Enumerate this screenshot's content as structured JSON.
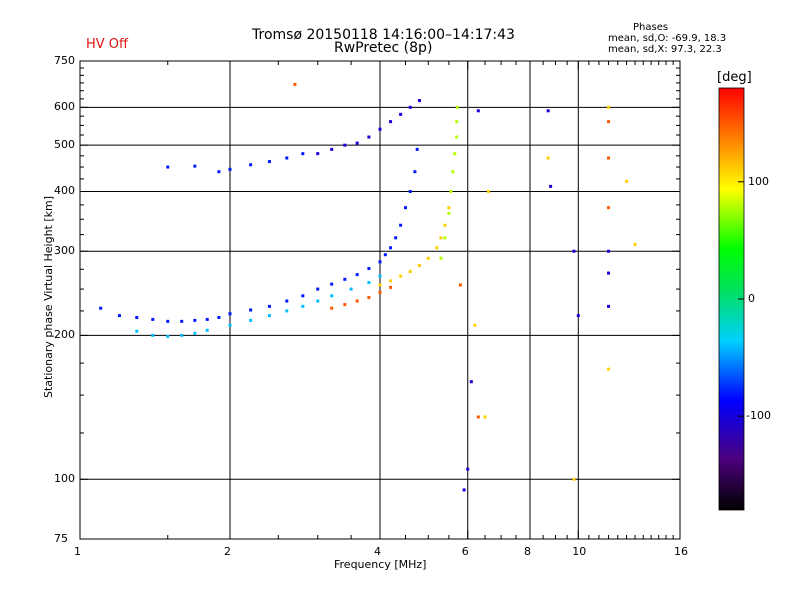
{
  "header": {
    "title_line1": "Tromsø 20150118  14:16:00–14:17:43",
    "title_line2": "RwPretec (8p)",
    "status": "HV Off",
    "phases_heading": "Phases",
    "phases_o": "mean, sd,O:  -69.9, 18.3",
    "phases_x": "mean, sd,X:  97.3, 22.3"
  },
  "chart_data": {
    "type": "scatter",
    "xlabel": "Frequency [MHz]",
    "ylabel": "Stationary phase Virtual Height [km]",
    "x_scale": "log",
    "y_scale": "log",
    "xlim": [
      1,
      16
    ],
    "ylim": [
      75,
      750
    ],
    "x_ticks": [
      1,
      2,
      4,
      6,
      8,
      10,
      16
    ],
    "y_ticks": [
      75,
      100,
      200,
      300,
      400,
      500,
      600,
      750
    ],
    "x_gridlines": [
      2,
      4,
      6,
      8,
      10
    ],
    "y_gridlines": [
      100,
      200,
      300,
      400,
      500,
      600
    ],
    "grid": true,
    "colorbar": {
      "label": "[deg]",
      "min": -180,
      "max": 180,
      "ticks": [
        100,
        0,
        -100
      ]
    },
    "series": [
      {
        "color_value": -80,
        "x": [
          1.1,
          1.2,
          1.3,
          1.4,
          1.5,
          1.6,
          1.7,
          1.8,
          1.9,
          2.0,
          2.2,
          2.4,
          2.6,
          2.8,
          3.0,
          3.2,
          3.4,
          3.6,
          3.8,
          4.0,
          4.1,
          4.2,
          4.3,
          4.4,
          4.5,
          4.6,
          4.7,
          4.75
        ],
        "y": [
          228,
          220,
          218,
          216,
          214,
          214,
          215,
          216,
          218,
          222,
          226,
          230,
          236,
          242,
          250,
          256,
          262,
          268,
          276,
          285,
          295,
          305,
          320,
          340,
          370,
          400,
          440,
          490
        ]
      },
      {
        "color_value": -40,
        "x": [
          1.3,
          1.4,
          1.5,
          1.6,
          1.7,
          1.8,
          2.0,
          2.2,
          2.4,
          2.6,
          2.8,
          3.0,
          3.2,
          3.5,
          3.8,
          4.0
        ],
        "y": [
          204,
          200,
          199,
          200,
          202,
          205,
          210,
          215,
          220,
          225,
          230,
          236,
          242,
          250,
          258,
          266
        ]
      },
      {
        "color_value": 150,
        "x": [
          3.2,
          3.4,
          3.6,
          3.8,
          4.0,
          4.2
        ],
        "y": [
          228,
          232,
          236,
          240,
          246,
          252
        ]
      },
      {
        "color_value": 110,
        "x": [
          4.0,
          4.2,
          4.4,
          4.6,
          4.8,
          5.0,
          5.2,
          5.3,
          5.4,
          5.5
        ],
        "y": [
          255,
          260,
          266,
          272,
          280,
          290,
          305,
          320,
          340,
          370
        ]
      },
      {
        "color_value": 80,
        "x": [
          5.3,
          5.4,
          5.5,
          5.55,
          5.6,
          5.65,
          5.7,
          5.7,
          5.72
        ],
        "y": [
          290,
          320,
          360,
          400,
          440,
          480,
          520,
          560,
          600
        ]
      },
      {
        "color_value": -80,
        "x": [
          1.5,
          1.7,
          1.9,
          2.0,
          2.2,
          2.4,
          2.6,
          2.8
        ],
        "y": [
          450,
          452,
          440,
          445,
          455,
          462,
          470,
          480
        ]
      },
      {
        "color_value": -100,
        "x": [
          3.0,
          3.2,
          3.4,
          3.6,
          3.8,
          4.0,
          4.2,
          4.4,
          4.6,
          4.8
        ],
        "y": [
          480,
          490,
          500,
          505,
          520,
          540,
          560,
          580,
          600,
          620
        ]
      },
      {
        "color_value": -100,
        "x": [
          5.9,
          6.0,
          6.1,
          6.3,
          8.7,
          8.8,
          9.8,
          10.0,
          11.5,
          11.5,
          11.5
        ],
        "y": [
          95,
          105,
          160,
          590,
          590,
          410,
          300,
          220,
          300,
          270,
          230
        ]
      },
      {
        "color_value": 110,
        "x": [
          6.2,
          6.5,
          8.7,
          9.8,
          11.5,
          11.5,
          12.5,
          13.0,
          6.6
        ],
        "y": [
          210,
          135,
          470,
          100,
          600,
          170,
          420,
          310,
          400
        ]
      },
      {
        "color_value": 150,
        "x": [
          2.7,
          5.8,
          6.3,
          11.5,
          11.5,
          11.5
        ],
        "y": [
          670,
          255,
          135,
          560,
          470,
          370
        ]
      }
    ]
  }
}
